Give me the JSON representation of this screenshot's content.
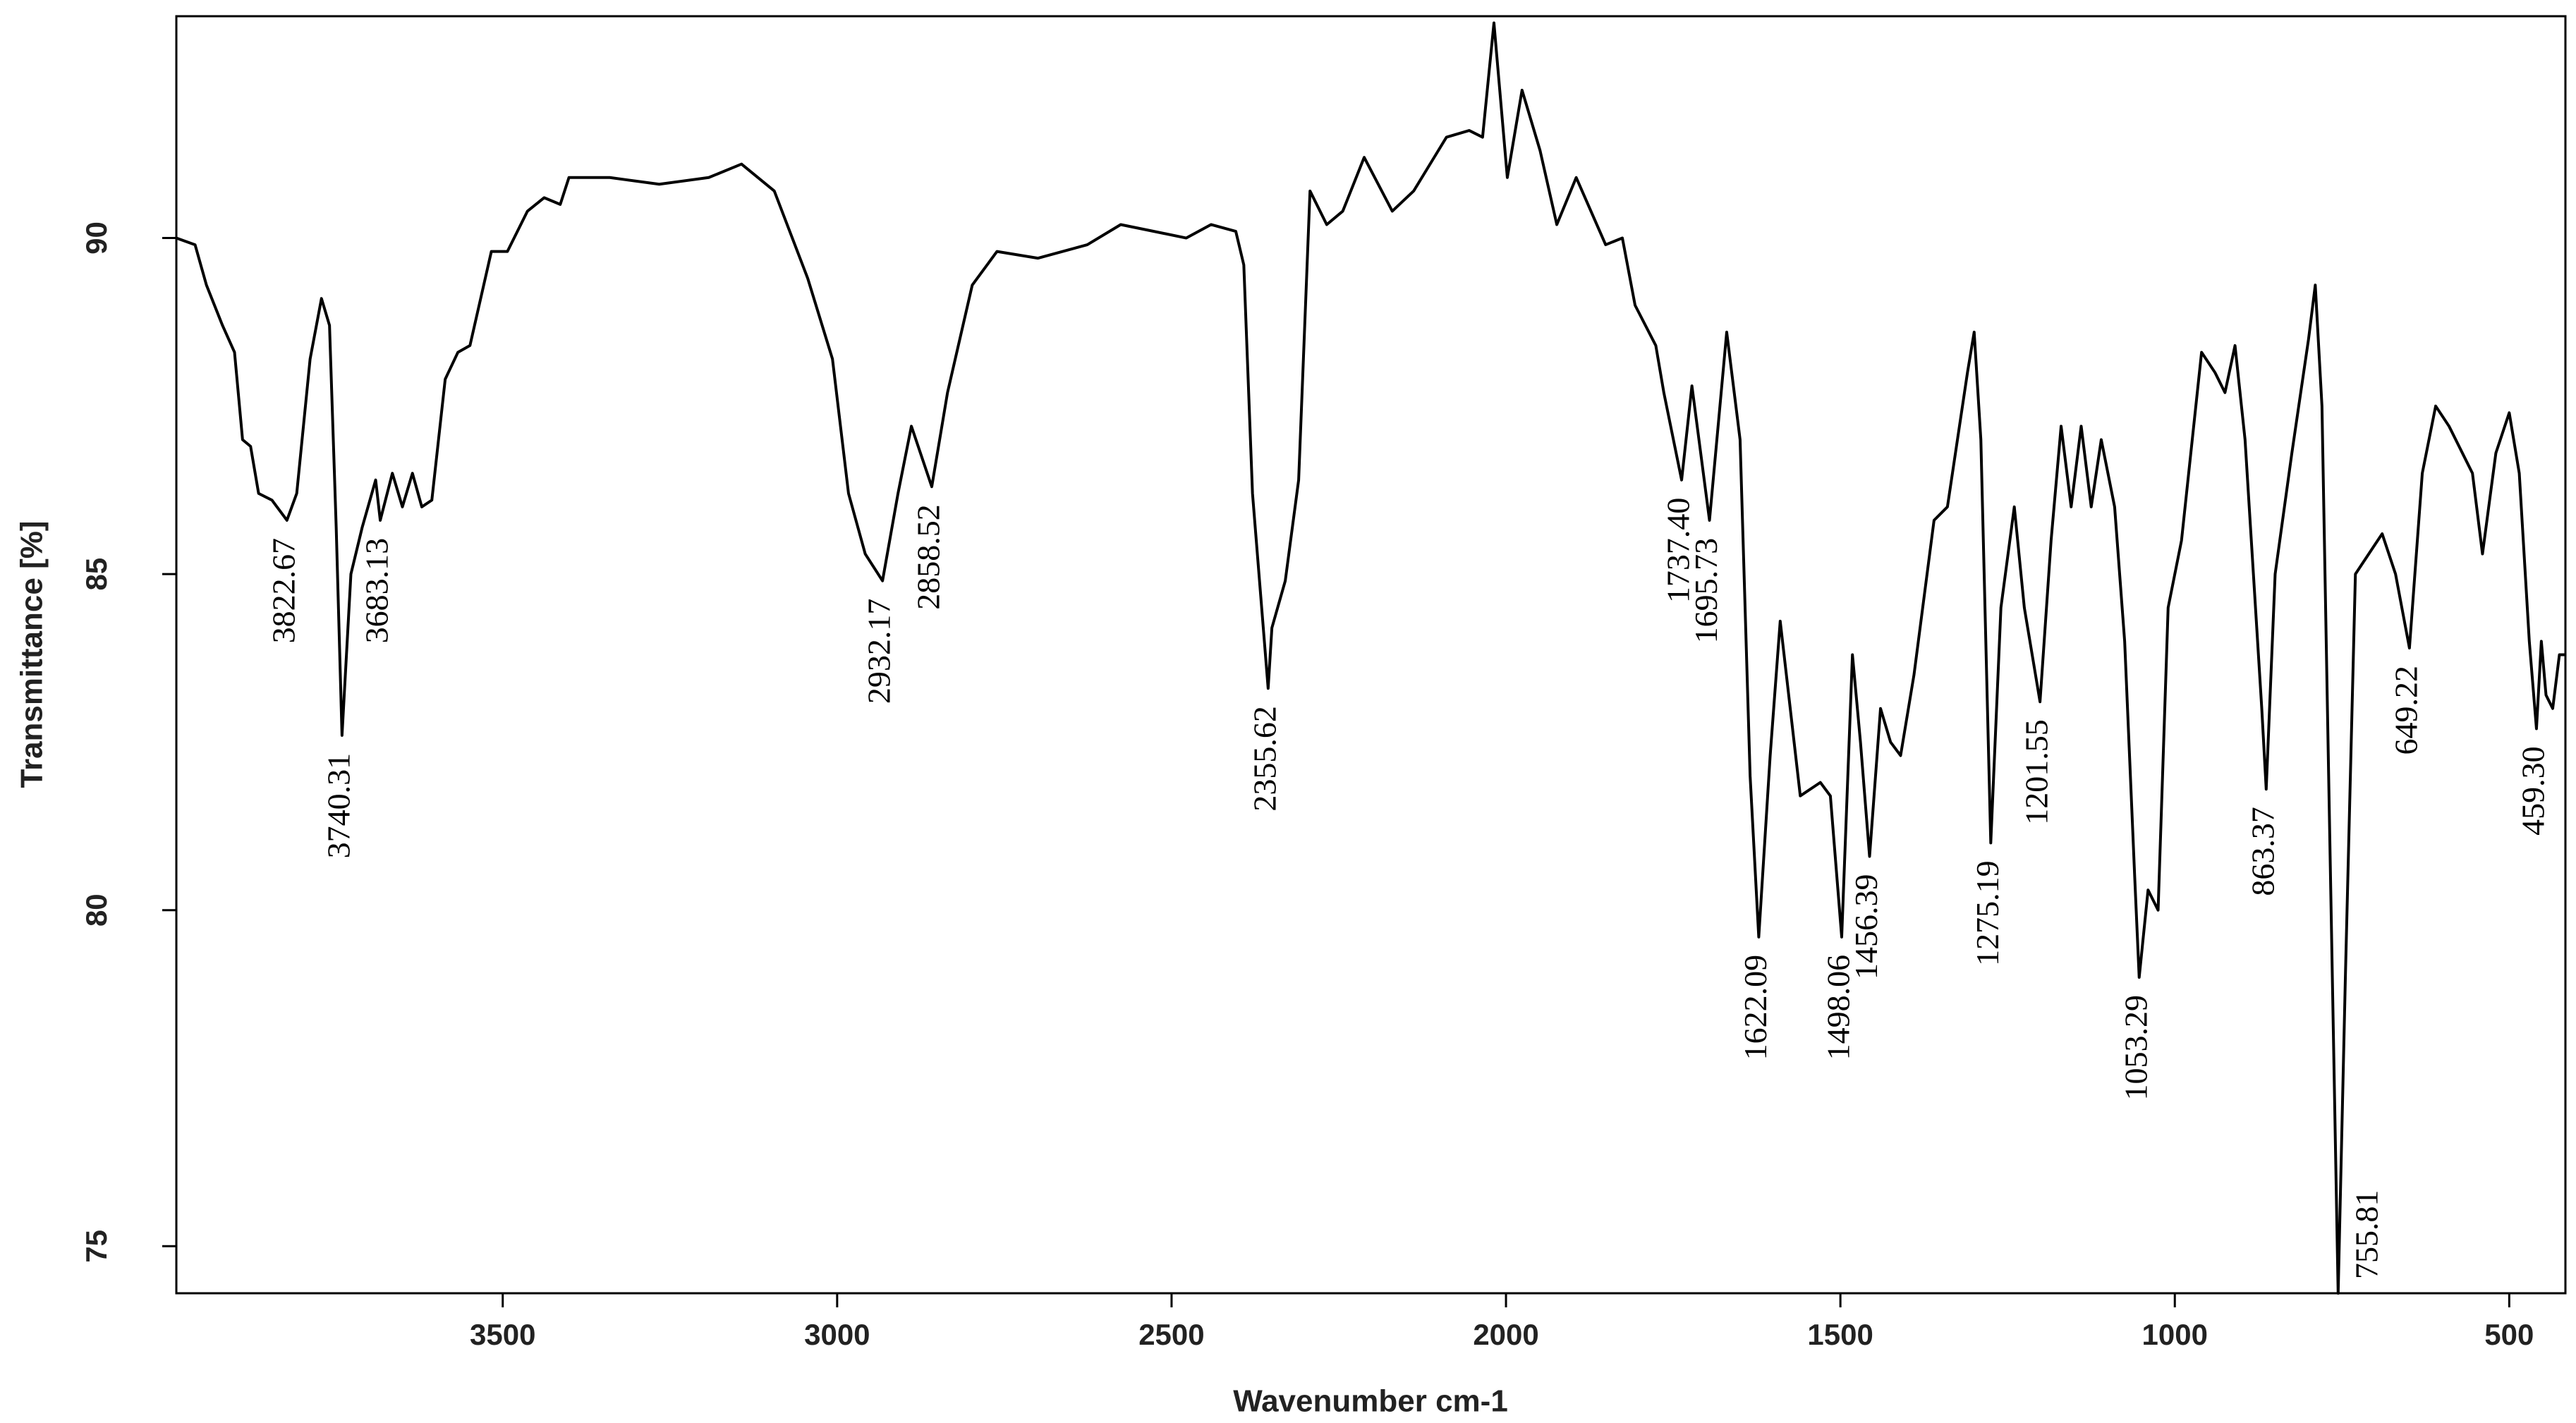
{
  "chart_data": {
    "type": "line",
    "xlabel": "Wavenumber cm-1",
    "ylabel": "Transmittance [%]",
    "color": "#000000",
    "xlim": [
      3988,
      416
    ],
    "ylim": [
      74.3,
      93.3
    ],
    "xticks": [
      3500,
      3000,
      2500,
      2000,
      1500,
      1000,
      500
    ],
    "yticks": [
      75,
      80,
      85,
      90
    ],
    "x": [
      3988,
      3960,
      3943,
      3919,
      3901,
      3889,
      3877,
      3865,
      3845,
      3822.67,
      3808,
      3788,
      3771,
      3759,
      3749,
      3740.31,
      3727,
      3710,
      3690,
      3683.13,
      3665,
      3650,
      3635,
      3621,
      3606,
      3586,
      3567,
      3549,
      3517,
      3493,
      3463,
      3438,
      3414,
      3401,
      3340,
      3266,
      3192,
      3143,
      3094,
      3044,
      3007,
      2983,
      2958,
      2932.17,
      2909,
      2889,
      2858.52,
      2835,
      2798,
      2761,
      2700,
      2626,
      2576,
      2527,
      2478,
      2441,
      2404,
      2392,
      2379,
      2355.62,
      2350,
      2330,
      2310,
      2293,
      2268,
      2244,
      2212,
      2170,
      2138,
      2089,
      2055,
      2035,
      2018,
      1998,
      1976,
      1949,
      1924,
      1895,
      1851,
      1826,
      1807,
      1776,
      1764,
      1737.4,
      1722,
      1695.73,
      1670,
      1650,
      1635,
      1622.09,
      1605,
      1590,
      1575,
      1560,
      1530,
      1515,
      1498.06,
      1482,
      1470,
      1456.39,
      1440,
      1425,
      1410,
      1390,
      1360,
      1340,
      1310,
      1300,
      1290,
      1275.19,
      1260,
      1240,
      1225,
      1201.55,
      1185,
      1170,
      1155,
      1140,
      1125,
      1110,
      1090,
      1075,
      1060,
      1053.29,
      1040,
      1025,
      1010,
      990,
      960,
      940,
      925,
      910,
      895,
      870,
      863.37,
      850,
      825,
      800,
      790,
      780,
      770,
      755.81,
      745,
      730,
      710,
      690,
      670,
      649.22,
      630,
      610,
      590,
      570,
      555,
      540,
      520,
      500,
      485,
      470,
      459.3,
      452,
      445,
      435,
      425,
      416
    ],
    "values": [
      90.0,
      89.9,
      89.3,
      88.7,
      88.3,
      87.0,
      86.9,
      86.2,
      86.1,
      85.8,
      86.2,
      88.2,
      89.1,
      88.7,
      85.7,
      82.6,
      85.0,
      85.7,
      86.4,
      85.8,
      86.5,
      86.0,
      86.5,
      86.0,
      86.1,
      87.9,
      88.3,
      88.4,
      89.8,
      89.8,
      90.4,
      90.6,
      90.5,
      90.9,
      90.9,
      90.8,
      90.9,
      91.1,
      90.7,
      89.4,
      88.2,
      86.2,
      85.3,
      84.9,
      86.2,
      87.2,
      86.3,
      87.7,
      89.3,
      89.8,
      89.7,
      89.9,
      90.2,
      90.1,
      90.0,
      90.2,
      90.1,
      89.6,
      86.2,
      83.3,
      84.2,
      84.9,
      86.4,
      90.7,
      90.2,
      90.4,
      91.2,
      90.4,
      90.7,
      91.5,
      91.6,
      91.5,
      93.2,
      90.9,
      92.2,
      91.3,
      90.2,
      90.9,
      89.9,
      90.0,
      89.0,
      88.4,
      87.7,
      86.4,
      87.8,
      85.8,
      88.6,
      87.0,
      82.0,
      79.6,
      82.3,
      84.3,
      83.0,
      81.7,
      81.9,
      81.7,
      79.6,
      83.8,
      82.5,
      80.8,
      83.0,
      82.5,
      82.3,
      83.5,
      85.8,
      86.0,
      88.0,
      88.6,
      87.0,
      81.0,
      84.5,
      86.0,
      84.5,
      83.1,
      85.5,
      87.2,
      86.0,
      87.2,
      86.0,
      87.0,
      86.0,
      84.0,
      80.5,
      79.0,
      80.3,
      80.0,
      84.5,
      85.5,
      88.3,
      88.0,
      87.7,
      88.4,
      87.0,
      83.0,
      81.8,
      85.0,
      86.8,
      88.5,
      89.3,
      87.5,
      82.0,
      74.3,
      79.0,
      85.0,
      85.3,
      85.6,
      85.0,
      83.9,
      86.5,
      87.5,
      87.2,
      86.8,
      86.5,
      85.3,
      86.8,
      87.4,
      86.5,
      84.0,
      82.7,
      84.0,
      83.2,
      83.0,
      83.8,
      83.8
    ],
    "annotations": [
      {
        "text": "3822.67",
        "x": 3822.67
      },
      {
        "text": "3740.31",
        "x": 3740.31
      },
      {
        "text": "3683.13",
        "x": 3683.13
      },
      {
        "text": "2932.17",
        "x": 2932.17
      },
      {
        "text": "2858.52",
        "x": 2858.52
      },
      {
        "text": "2355.62",
        "x": 2355.62
      },
      {
        "text": "1737.40",
        "x": 1737.4
      },
      {
        "text": "1695.73",
        "x": 1695.73
      },
      {
        "text": "1622.09",
        "x": 1622.09
      },
      {
        "text": "1498.06",
        "x": 1498.06
      },
      {
        "text": "1456.39",
        "x": 1456.39
      },
      {
        "text": "1275.19",
        "x": 1275.19
      },
      {
        "text": "1201.55",
        "x": 1201.55
      },
      {
        "text": "1053.29",
        "x": 1053.29
      },
      {
        "text": "863.37",
        "x": 863.37
      },
      {
        "text": "755.81",
        "x": 755.81
      },
      {
        "text": "649.22",
        "x": 649.22
      },
      {
        "text": "459.30",
        "x": 459.3
      }
    ]
  }
}
